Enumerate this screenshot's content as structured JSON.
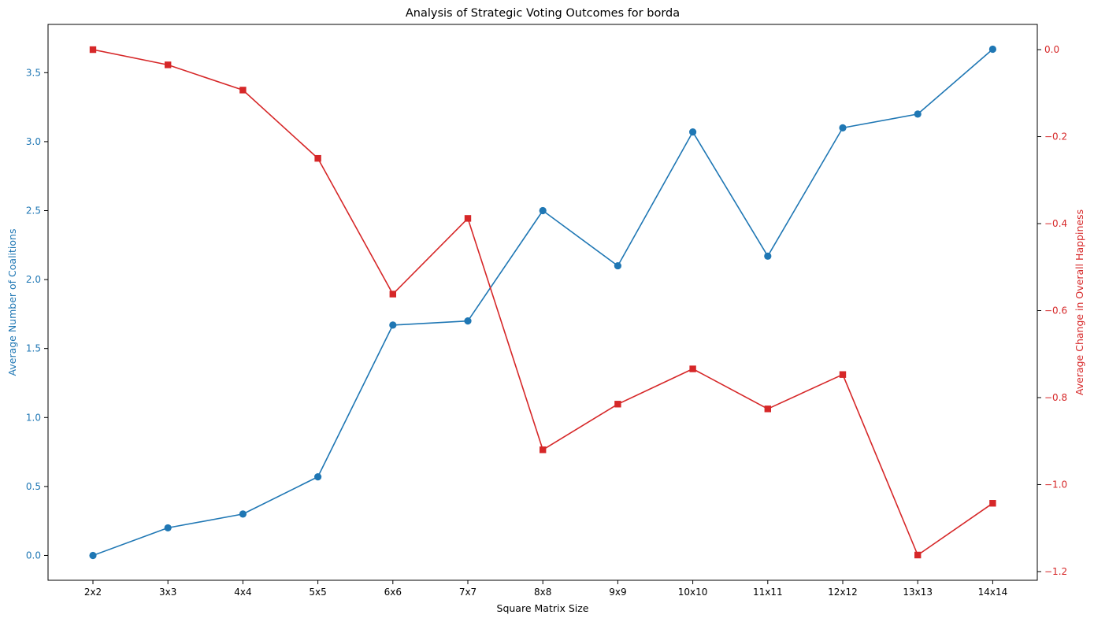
{
  "chart_data": {
    "type": "line",
    "title": "Analysis of Strategic Voting Outcomes for borda",
    "xlabel": "Square Matrix Size",
    "categories": [
      "2x2",
      "3x3",
      "4x4",
      "5x5",
      "6x6",
      "7x7",
      "8x8",
      "9x9",
      "10x10",
      "11x11",
      "12x12",
      "13x13",
      "14x14"
    ],
    "y_left": {
      "label": "Average Number of Coalitions",
      "ylim": [
        -0.18,
        3.85
      ],
      "ticks": [
        0.0,
        0.5,
        1.0,
        1.5,
        2.0,
        2.5,
        3.0,
        3.5
      ],
      "tick_labels": [
        "0.0",
        "0.5",
        "1.0",
        "1.5",
        "2.0",
        "2.5",
        "3.0",
        "3.5"
      ],
      "color": "#1f77b4"
    },
    "y_right": {
      "label": "Average Change in Overall Happiness",
      "ylim": [
        -1.22,
        0.058
      ],
      "ticks": [
        0.0,
        -0.2,
        -0.4,
        -0.6,
        -0.8,
        -1.0,
        -1.2
      ],
      "tick_labels": [
        "0.0",
        "−0.2",
        "−0.4",
        "−0.6",
        "−0.8",
        "−1.0",
        "−1.2"
      ],
      "color": "#d62728"
    },
    "series": [
      {
        "axis": "left",
        "marker": "circle",
        "color": "#1f77b4",
        "values": [
          0.0,
          0.2,
          0.3,
          0.57,
          1.67,
          1.7,
          2.5,
          2.1,
          3.07,
          2.17,
          3.1,
          3.2,
          3.67
        ]
      },
      {
        "axis": "right",
        "marker": "square",
        "color": "#d62728",
        "values": [
          0.0,
          -0.035,
          -0.093,
          -0.25,
          -0.562,
          -0.388,
          -0.92,
          -0.815,
          -0.734,
          -0.826,
          -0.747,
          -1.162,
          -1.043
        ]
      }
    ],
    "grid": false,
    "legend": "none"
  }
}
